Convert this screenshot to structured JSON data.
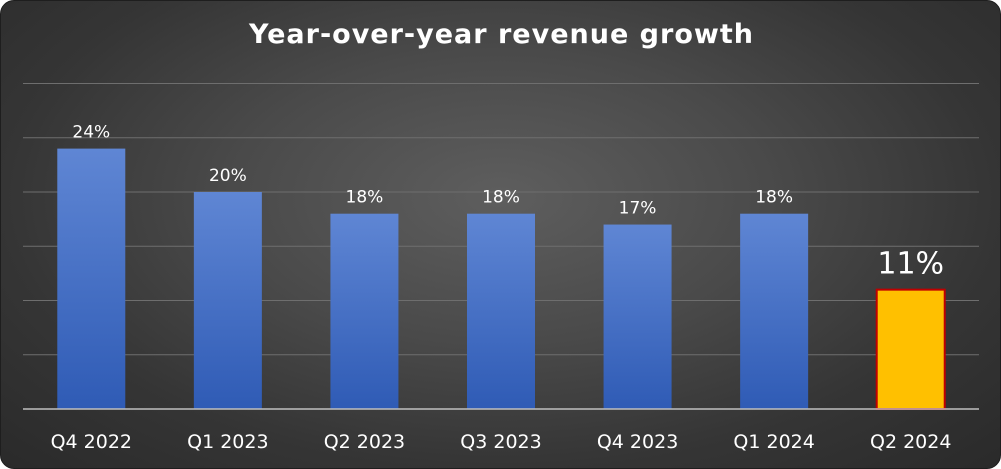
{
  "chart_data": {
    "type": "bar",
    "title": "Year-over-year revenue growth",
    "xlabel": "",
    "ylabel": "",
    "categories": [
      "Q4 2022",
      "Q1 2023",
      "Q2 2023",
      "Q3 2023",
      "Q4 2023",
      "Q1 2024",
      "Q2 2024"
    ],
    "values": [
      24,
      20,
      18,
      18,
      17,
      18,
      11
    ],
    "data_labels": [
      "24%",
      "20%",
      "18%",
      "18%",
      "17%",
      "18%",
      "11%"
    ],
    "ylim": [
      0,
      30
    ],
    "y_gridline_step": 5,
    "grid": true,
    "legend": "none",
    "colors": {
      "bar": "#4472c4",
      "highlight_bar": "#ffc000",
      "highlight_border": "#c00000",
      "gridline": "#6e6e6e",
      "axis": "#bfbfbf",
      "text": "#ffffff"
    },
    "highlight_index": 6
  }
}
